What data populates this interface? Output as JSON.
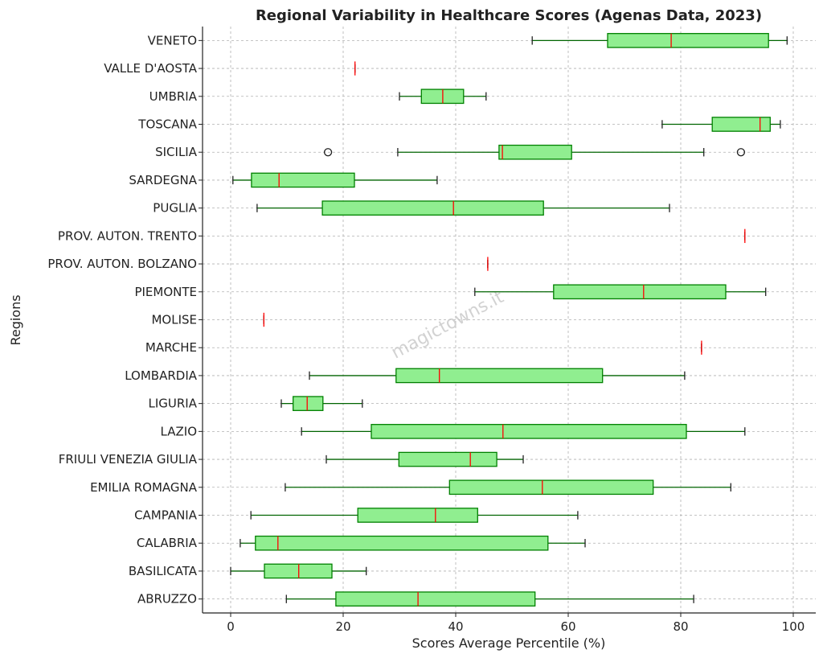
{
  "chart_data": {
    "type": "boxplot",
    "orientation": "horizontal",
    "title": "Regional Variability in Healthcare Scores (Agenas Data, 2023)",
    "xlabel": "Scores Average Percentile (%)",
    "ylabel": "Regions",
    "xlim": [
      -5,
      104
    ],
    "xticks": [
      0,
      20,
      40,
      60,
      80,
      100
    ],
    "grid": true,
    "colors": {
      "box_fill": "#90ee90",
      "box_edge": "#008000",
      "median": "#ff0000",
      "whisker": "#006400"
    },
    "watermark": "MagicTowns magictowns.it",
    "categories": [
      "VENETO",
      "VALLE D'AOSTA",
      "UMBRIA",
      "TOSCANA",
      "SICILIA",
      "SARDEGNA",
      "PUGLIA",
      "PROV. AUTON. TRENTO",
      "PROV. AUTON. BOLZANO",
      "PIEMONTE",
      "MOLISE",
      "MARCHE",
      "LOMBARDIA",
      "LIGURIA",
      "LAZIO",
      "FRIULI VENEZIA GIULIA",
      "EMILIA ROMAGNA",
      "CAMPANIA",
      "CALABRIA",
      "BASILICATA",
      "ABRUZZO"
    ],
    "boxes": [
      {
        "whislo": 53.6,
        "q1": 67.0,
        "med": 78.3,
        "q3": 95.6,
        "whishi": 98.9,
        "fliers": []
      },
      {
        "whislo": 22.1,
        "q1": 22.1,
        "med": 22.1,
        "q3": 22.1,
        "whishi": 22.1,
        "fliers": []
      },
      {
        "whislo": 30.0,
        "q1": 33.9,
        "med": 37.7,
        "q3": 41.4,
        "whishi": 45.4,
        "fliers": []
      },
      {
        "whislo": 76.7,
        "q1": 85.6,
        "med": 94.1,
        "q3": 95.9,
        "whishi": 97.7,
        "fliers": []
      },
      {
        "whislo": 29.7,
        "q1": 47.7,
        "med": 48.3,
        "q3": 60.6,
        "whishi": 84.1,
        "fliers": [
          17.3,
          90.7
        ]
      },
      {
        "whislo": 0.4,
        "q1": 3.7,
        "med": 8.6,
        "q3": 22.0,
        "whishi": 36.7,
        "fliers": []
      },
      {
        "whislo": 4.7,
        "q1": 16.3,
        "med": 39.6,
        "q3": 55.6,
        "whishi": 78.0,
        "fliers": []
      },
      {
        "whislo": 91.4,
        "q1": 91.4,
        "med": 91.4,
        "q3": 91.4,
        "whishi": 91.4,
        "fliers": []
      },
      {
        "whislo": 45.7,
        "q1": 45.7,
        "med": 45.7,
        "q3": 45.7,
        "whishi": 45.7,
        "fliers": []
      },
      {
        "whislo": 43.4,
        "q1": 57.4,
        "med": 73.4,
        "q3": 88.0,
        "whishi": 95.1,
        "fliers": []
      },
      {
        "whislo": 5.9,
        "q1": 5.9,
        "med": 5.9,
        "q3": 5.9,
        "whishi": 5.9,
        "fliers": []
      },
      {
        "whislo": 83.7,
        "q1": 83.7,
        "med": 83.7,
        "q3": 83.7,
        "whishi": 83.7,
        "fliers": []
      },
      {
        "whislo": 14.0,
        "q1": 29.4,
        "med": 37.1,
        "q3": 66.1,
        "whishi": 80.7,
        "fliers": []
      },
      {
        "whislo": 9.0,
        "q1": 11.1,
        "med": 13.6,
        "q3": 16.4,
        "whishi": 23.4,
        "fliers": []
      },
      {
        "whislo": 12.6,
        "q1": 25.0,
        "med": 48.4,
        "q3": 81.0,
        "whishi": 91.4,
        "fliers": []
      },
      {
        "whislo": 17.0,
        "q1": 29.9,
        "med": 42.6,
        "q3": 47.3,
        "whishi": 52.0,
        "fliers": []
      },
      {
        "whislo": 9.7,
        "q1": 38.9,
        "med": 55.4,
        "q3": 75.1,
        "whishi": 88.9,
        "fliers": []
      },
      {
        "whislo": 3.6,
        "q1": 22.6,
        "med": 36.4,
        "q3": 43.9,
        "whishi": 61.7,
        "fliers": []
      },
      {
        "whislo": 1.7,
        "q1": 4.4,
        "med": 8.4,
        "q3": 56.4,
        "whishi": 63.0,
        "fliers": []
      },
      {
        "whislo": 0.0,
        "q1": 6.0,
        "med": 12.1,
        "q3": 18.0,
        "whishi": 24.1,
        "fliers": []
      },
      {
        "whislo": 9.9,
        "q1": 18.7,
        "med": 33.3,
        "q3": 54.1,
        "whishi": 82.3,
        "fliers": []
      }
    ]
  }
}
